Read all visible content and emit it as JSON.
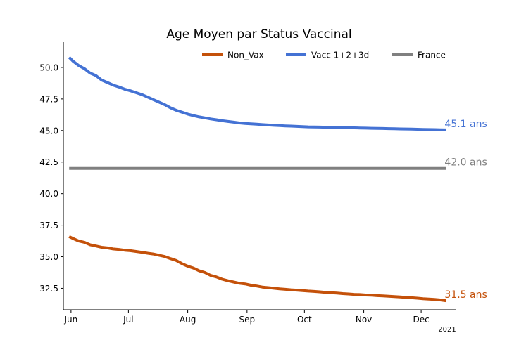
{
  "chart_data": {
    "type": "line",
    "title": "Age Moyen par Status Vaccinal",
    "xlabel": "",
    "ylabel": "",
    "x_range": [
      "2021-05-28",
      "2021-12-19"
    ],
    "ylim": [
      30.8,
      52.0
    ],
    "y_ticks": [
      32.5,
      35.0,
      37.5,
      40.0,
      42.5,
      45.0,
      47.5,
      50.0
    ],
    "y_tick_labels": [
      "32.5",
      "35.0",
      "37.5",
      "40.0",
      "42.5",
      "45.0",
      "47.5",
      "50.0"
    ],
    "x_ticks": [
      {
        "date": "2021-06-01",
        "label": "Jun"
      },
      {
        "date": "2021-07-01",
        "label": "Jul"
      },
      {
        "date": "2021-08-01",
        "label": "Aug"
      },
      {
        "date": "2021-09-01",
        "label": "Sep"
      },
      {
        "date": "2021-10-01",
        "label": "Oct"
      },
      {
        "date": "2021-11-01",
        "label": "Nov"
      },
      {
        "date": "2021-12-01",
        "label": "Dec"
      }
    ],
    "year_label": "2021",
    "grid": false,
    "legend_position": "top-right",
    "series": [
      {
        "name": "Non_Vax",
        "color": "#c4510a",
        "end_label": "31.5 ans",
        "points": [
          [
            "2021-05-31",
            36.6
          ],
          [
            "2021-06-02",
            36.45
          ],
          [
            "2021-06-05",
            36.25
          ],
          [
            "2021-06-08",
            36.15
          ],
          [
            "2021-06-11",
            35.95
          ],
          [
            "2021-06-14",
            35.85
          ],
          [
            "2021-06-17",
            35.75
          ],
          [
            "2021-06-20",
            35.7
          ],
          [
            "2021-06-23",
            35.62
          ],
          [
            "2021-06-26",
            35.58
          ],
          [
            "2021-06-29",
            35.52
          ],
          [
            "2021-07-02",
            35.48
          ],
          [
            "2021-07-05",
            35.42
          ],
          [
            "2021-07-08",
            35.35
          ],
          [
            "2021-07-11",
            35.28
          ],
          [
            "2021-07-14",
            35.22
          ],
          [
            "2021-07-17",
            35.12
          ],
          [
            "2021-07-20",
            35.02
          ],
          [
            "2021-07-23",
            34.85
          ],
          [
            "2021-07-26",
            34.7
          ],
          [
            "2021-07-29",
            34.45
          ],
          [
            "2021-08-01",
            34.25
          ],
          [
            "2021-08-04",
            34.1
          ],
          [
            "2021-08-07",
            33.88
          ],
          [
            "2021-08-10",
            33.75
          ],
          [
            "2021-08-13",
            33.52
          ],
          [
            "2021-08-16",
            33.4
          ],
          [
            "2021-08-19",
            33.22
          ],
          [
            "2021-08-22",
            33.1
          ],
          [
            "2021-08-25",
            33.0
          ],
          [
            "2021-08-28",
            32.9
          ],
          [
            "2021-08-31",
            32.85
          ],
          [
            "2021-09-03",
            32.75
          ],
          [
            "2021-09-06",
            32.68
          ],
          [
            "2021-09-09",
            32.6
          ],
          [
            "2021-09-12",
            32.55
          ],
          [
            "2021-09-15",
            32.5
          ],
          [
            "2021-09-18",
            32.45
          ],
          [
            "2021-09-21",
            32.42
          ],
          [
            "2021-09-24",
            32.38
          ],
          [
            "2021-09-27",
            32.35
          ],
          [
            "2021-09-30",
            32.32
          ],
          [
            "2021-10-03",
            32.28
          ],
          [
            "2021-10-06",
            32.25
          ],
          [
            "2021-10-09",
            32.22
          ],
          [
            "2021-10-12",
            32.18
          ],
          [
            "2021-10-15",
            32.15
          ],
          [
            "2021-10-18",
            32.12
          ],
          [
            "2021-10-21",
            32.08
          ],
          [
            "2021-10-24",
            32.05
          ],
          [
            "2021-10-27",
            32.02
          ],
          [
            "2021-10-30",
            32.0
          ],
          [
            "2021-11-02",
            31.97
          ],
          [
            "2021-11-05",
            31.95
          ],
          [
            "2021-11-08",
            31.92
          ],
          [
            "2021-11-11",
            31.9
          ],
          [
            "2021-11-14",
            31.87
          ],
          [
            "2021-11-17",
            31.84
          ],
          [
            "2021-11-20",
            31.81
          ],
          [
            "2021-11-23",
            31.78
          ],
          [
            "2021-11-26",
            31.75
          ],
          [
            "2021-11-29",
            31.72
          ],
          [
            "2021-12-02",
            31.68
          ],
          [
            "2021-12-05",
            31.65
          ],
          [
            "2021-12-08",
            31.62
          ],
          [
            "2021-12-11",
            31.58
          ],
          [
            "2021-12-14",
            31.52
          ]
        ]
      },
      {
        "name": "Vacc 1+2+3d",
        "color": "#4472d4",
        "end_label": "45.1 ans",
        "points": [
          [
            "2021-05-31",
            50.8
          ],
          [
            "2021-06-02",
            50.5
          ],
          [
            "2021-06-05",
            50.15
          ],
          [
            "2021-06-08",
            49.9
          ],
          [
            "2021-06-11",
            49.55
          ],
          [
            "2021-06-14",
            49.35
          ],
          [
            "2021-06-17",
            49.0
          ],
          [
            "2021-06-20",
            48.8
          ],
          [
            "2021-06-23",
            48.6
          ],
          [
            "2021-06-26",
            48.45
          ],
          [
            "2021-06-29",
            48.28
          ],
          [
            "2021-07-02",
            48.15
          ],
          [
            "2021-07-05",
            48.0
          ],
          [
            "2021-07-08",
            47.85
          ],
          [
            "2021-07-11",
            47.65
          ],
          [
            "2021-07-14",
            47.45
          ],
          [
            "2021-07-17",
            47.25
          ],
          [
            "2021-07-20",
            47.05
          ],
          [
            "2021-07-23",
            46.8
          ],
          [
            "2021-07-26",
            46.6
          ],
          [
            "2021-07-29",
            46.45
          ],
          [
            "2021-08-01",
            46.3
          ],
          [
            "2021-08-04",
            46.18
          ],
          [
            "2021-08-07",
            46.08
          ],
          [
            "2021-08-10",
            46.0
          ],
          [
            "2021-08-13",
            45.92
          ],
          [
            "2021-08-16",
            45.85
          ],
          [
            "2021-08-19",
            45.78
          ],
          [
            "2021-08-22",
            45.72
          ],
          [
            "2021-08-25",
            45.66
          ],
          [
            "2021-08-28",
            45.6
          ],
          [
            "2021-08-31",
            45.56
          ],
          [
            "2021-09-03",
            45.53
          ],
          [
            "2021-09-06",
            45.5
          ],
          [
            "2021-09-09",
            45.47
          ],
          [
            "2021-09-12",
            45.44
          ],
          [
            "2021-09-15",
            45.41
          ],
          [
            "2021-09-18",
            45.39
          ],
          [
            "2021-09-21",
            45.37
          ],
          [
            "2021-09-24",
            45.35
          ],
          [
            "2021-09-27",
            45.33
          ],
          [
            "2021-09-30",
            45.31
          ],
          [
            "2021-10-03",
            45.29
          ],
          [
            "2021-10-06",
            45.28
          ],
          [
            "2021-10-09",
            45.27
          ],
          [
            "2021-10-12",
            45.26
          ],
          [
            "2021-10-15",
            45.25
          ],
          [
            "2021-10-18",
            45.24
          ],
          [
            "2021-10-21",
            45.23
          ],
          [
            "2021-10-24",
            45.22
          ],
          [
            "2021-10-27",
            45.21
          ],
          [
            "2021-10-30",
            45.2
          ],
          [
            "2021-11-02",
            45.19
          ],
          [
            "2021-11-05",
            45.18
          ],
          [
            "2021-11-08",
            45.17
          ],
          [
            "2021-11-11",
            45.16
          ],
          [
            "2021-11-14",
            45.15
          ],
          [
            "2021-11-17",
            45.14
          ],
          [
            "2021-11-20",
            45.13
          ],
          [
            "2021-11-23",
            45.12
          ],
          [
            "2021-11-26",
            45.11
          ],
          [
            "2021-11-29",
            45.1
          ],
          [
            "2021-12-02",
            45.09
          ],
          [
            "2021-12-05",
            45.08
          ],
          [
            "2021-12-08",
            45.07
          ],
          [
            "2021-12-11",
            45.06
          ],
          [
            "2021-12-14",
            45.05
          ]
        ]
      },
      {
        "name": "France",
        "color": "#808080",
        "end_label": "42.0 ans",
        "points": [
          [
            "2021-05-31",
            42.0
          ],
          [
            "2021-12-14",
            42.0
          ]
        ]
      }
    ]
  }
}
